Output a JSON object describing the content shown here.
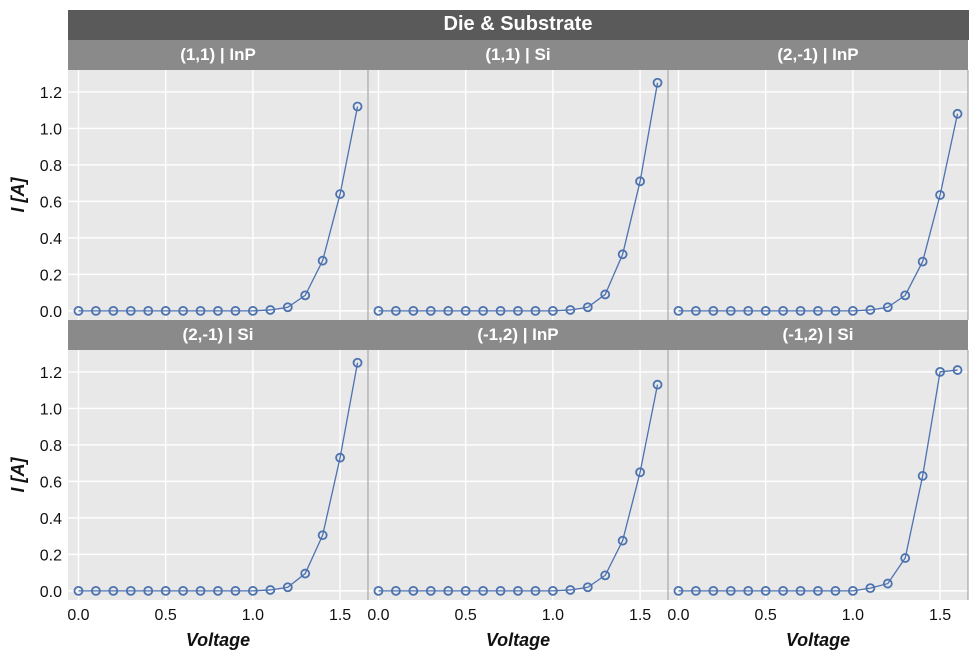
{
  "chart_data": {
    "type": "line",
    "title": "Die & Substrate",
    "xlabel": "Voltage",
    "ylabel": "I [A]",
    "xlim": [
      -0.06,
      1.66
    ],
    "ylim": [
      -0.05,
      1.32
    ],
    "xticks": [
      "0.0",
      "0.5",
      "1.0",
      "1.5"
    ],
    "yticks": [
      "0.0",
      "0.2",
      "0.4",
      "0.6",
      "0.8",
      "1.0",
      "1.2"
    ],
    "x": [
      0.0,
      0.1,
      0.2,
      0.3,
      0.4,
      0.5,
      0.6,
      0.7,
      0.8,
      0.9,
      1.0,
      1.1,
      1.2,
      1.3,
      1.4,
      1.5,
      1.6
    ],
    "panels": [
      {
        "label": "(1,1) | InP",
        "values": [
          0,
          0,
          0,
          0,
          0,
          0,
          0,
          0,
          0,
          0,
          0,
          0.005,
          0.02,
          0.085,
          0.275,
          0.64,
          1.12
        ]
      },
      {
        "label": "(1,1) | Si",
        "values": [
          0,
          0,
          0,
          0,
          0,
          0,
          0,
          0,
          0,
          0,
          0,
          0.005,
          0.02,
          0.09,
          0.31,
          0.71,
          1.25
        ]
      },
      {
        "label": "(2,-1) | InP",
        "values": [
          0,
          0,
          0,
          0,
          0,
          0,
          0,
          0,
          0,
          0,
          0,
          0.005,
          0.02,
          0.085,
          0.27,
          0.635,
          1.08
        ]
      },
      {
        "label": "(2,-1) | Si",
        "values": [
          0,
          0,
          0,
          0,
          0,
          0,
          0,
          0,
          0,
          0,
          0,
          0.005,
          0.02,
          0.095,
          0.305,
          0.73,
          1.25
        ]
      },
      {
        "label": "(-1,2) | InP",
        "values": [
          0,
          0,
          0,
          0,
          0,
          0,
          0,
          0,
          0,
          0,
          0,
          0.005,
          0.02,
          0.085,
          0.275,
          0.65,
          1.13
        ]
      },
      {
        "label": "(-1,2) | Si",
        "values": [
          0,
          0,
          0,
          0,
          0,
          0,
          0,
          0,
          0,
          0,
          0,
          0.015,
          0.04,
          0.18,
          0.63,
          1.2,
          1.21
        ]
      }
    ],
    "grid": true,
    "colors": {
      "series": "#4c72b0",
      "panel_bg": "#e8e8e8",
      "strip": "#8a8a8a",
      "title_strip": "#5a5a5a",
      "grid": "#ffffff"
    }
  }
}
